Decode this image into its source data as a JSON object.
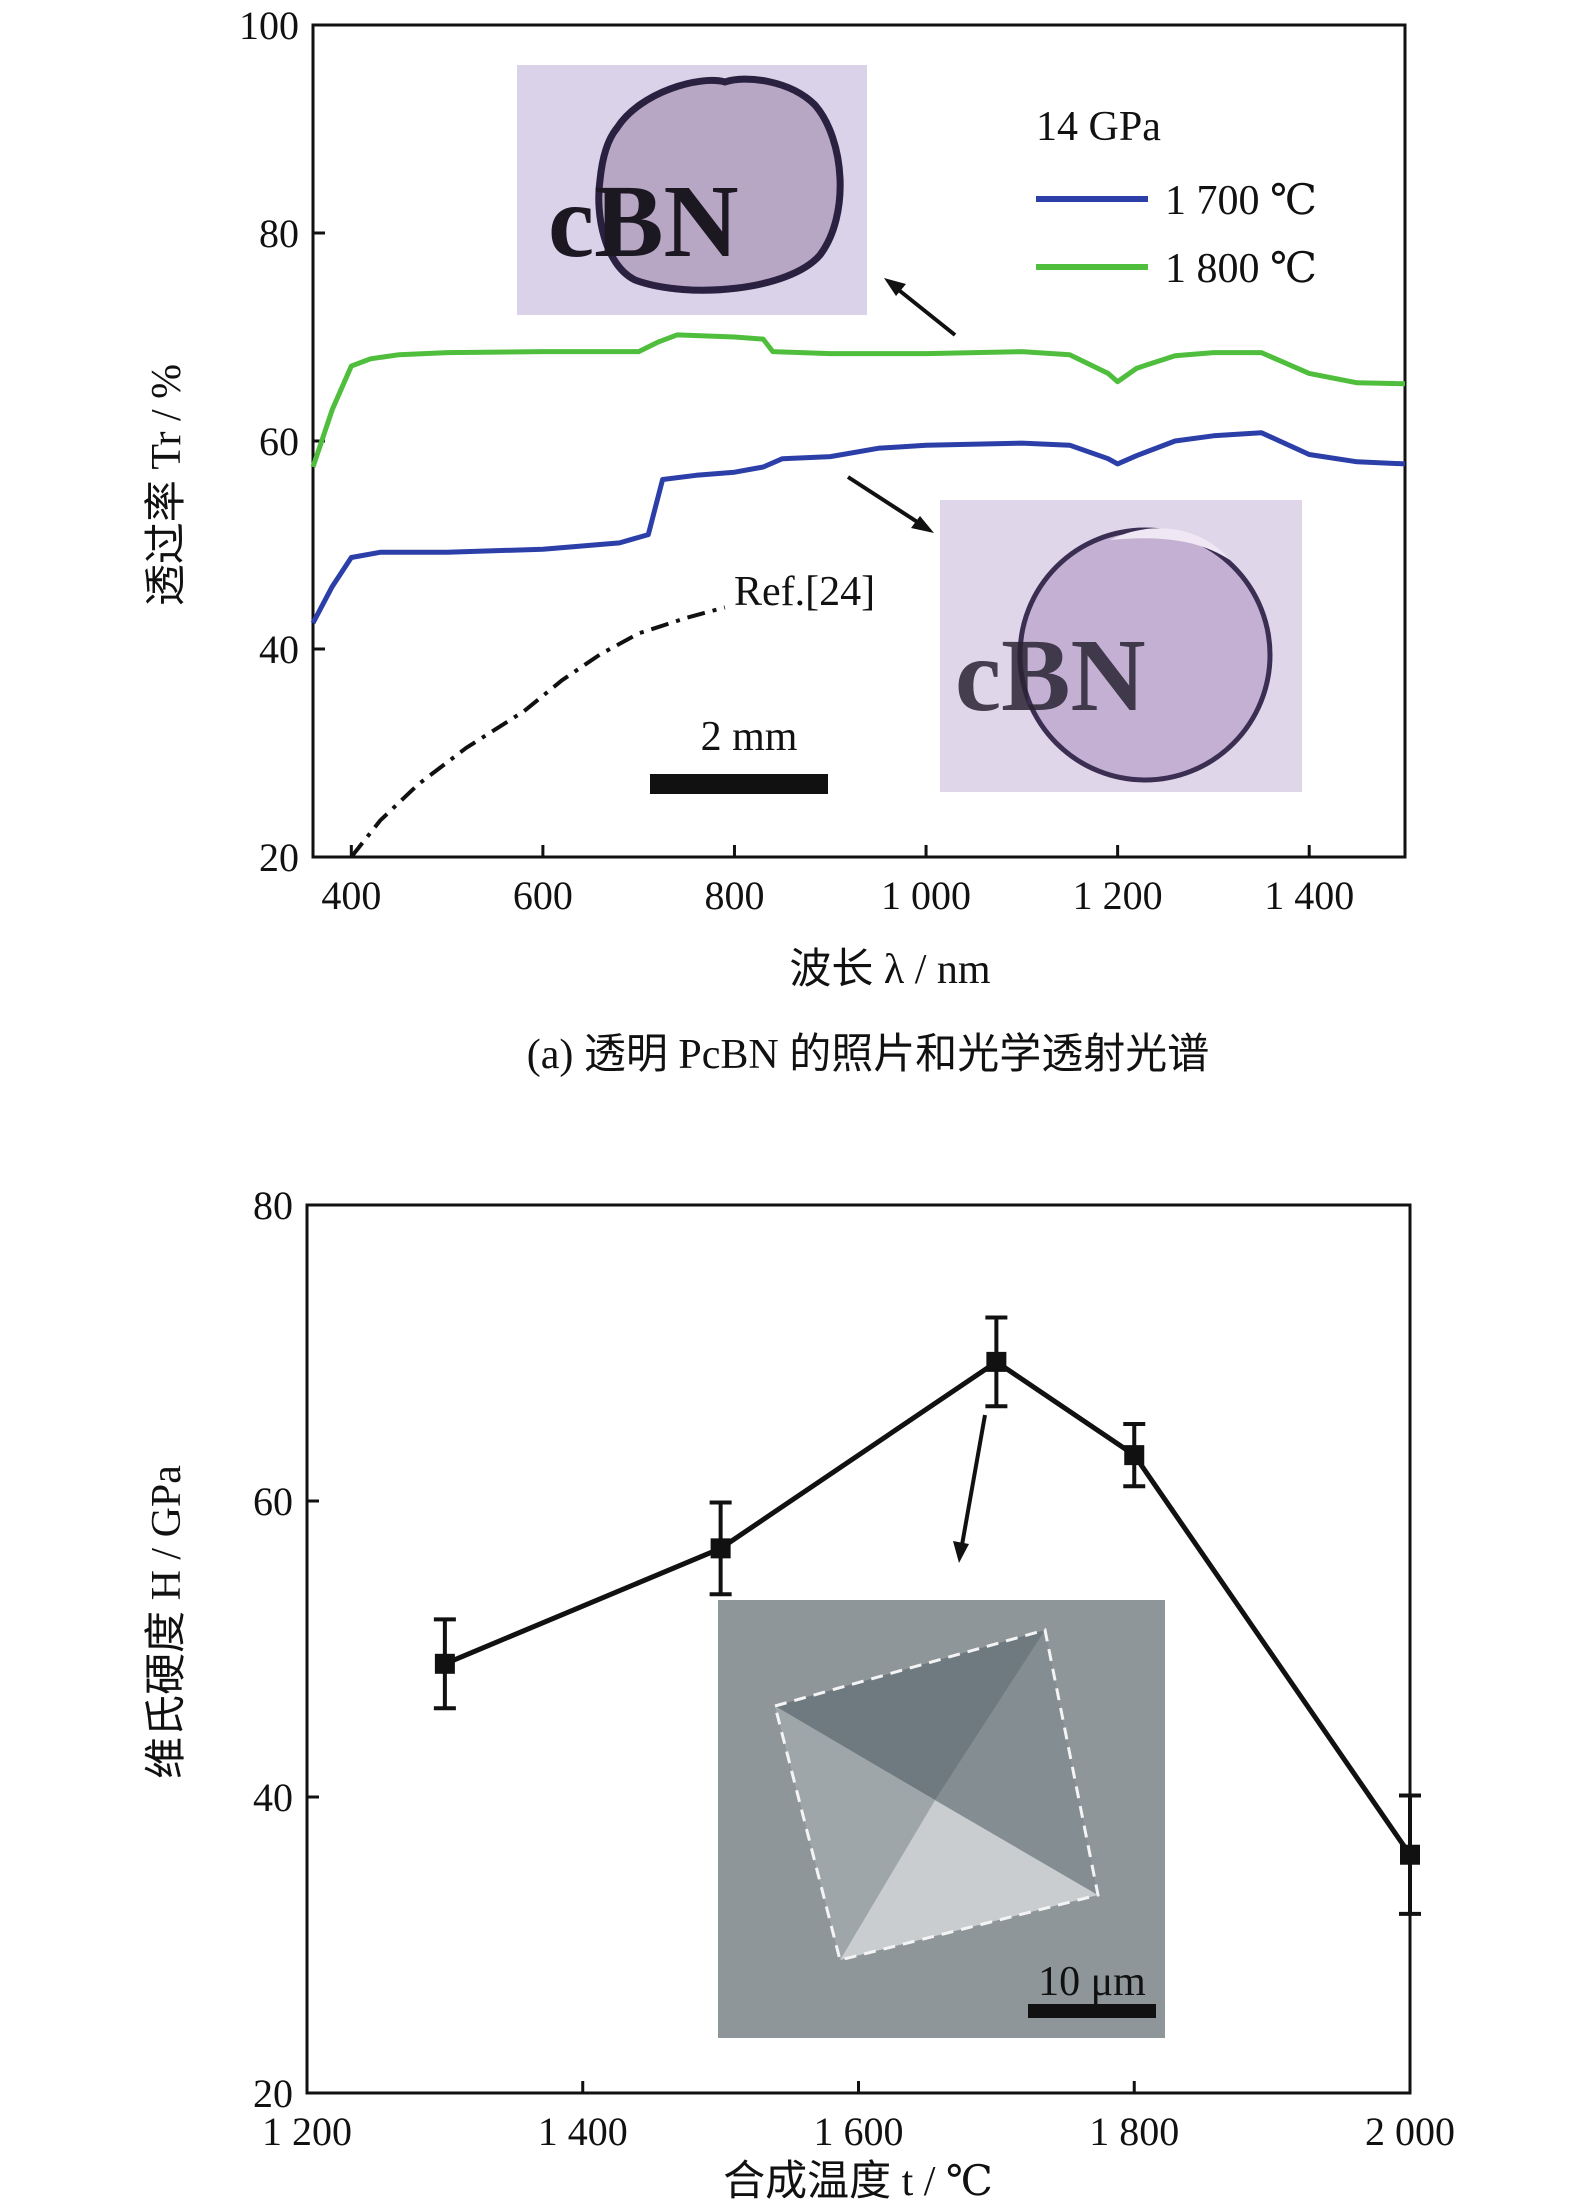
{
  "chart_data": [
    {
      "type": "line",
      "caption": "(a) 透明 PcBN 的照片和光学透射光谱",
      "xlabel": "波长 λ / nm",
      "ylabel": "透过率 Tr / %",
      "xlim": [
        360,
        1500
      ],
      "ylim": [
        20,
        100
      ],
      "xticks": [
        400,
        600,
        800,
        1000,
        1200,
        1400
      ],
      "xtick_labels": [
        "400",
        "600",
        "800",
        "1 000",
        "1 200",
        "1 400"
      ],
      "yticks": [
        20,
        40,
        60,
        80,
        100
      ],
      "ytick_labels": [
        "20",
        "40",
        "60",
        "80",
        "100"
      ],
      "legend_title": "14 GPa",
      "legend_position": "top-right",
      "series": [
        {
          "name": "1 700 ℃",
          "color": "#2c3fa8",
          "x": [
            360,
            380,
            400,
            430,
            500,
            600,
            680,
            710,
            725,
            760,
            800,
            830,
            850,
            900,
            950,
            1000,
            1100,
            1150,
            1190,
            1200,
            1220,
            1260,
            1300,
            1350,
            1400,
            1450,
            1500
          ],
          "y": [
            42.5,
            46,
            48.8,
            49.3,
            49.3,
            49.6,
            50.2,
            51,
            56.3,
            56.7,
            57,
            57.5,
            58.3,
            58.5,
            59.3,
            59.6,
            59.8,
            59.6,
            58.3,
            57.8,
            58.6,
            60,
            60.5,
            60.8,
            58.7,
            58,
            57.8
          ]
        },
        {
          "name": "1 800 ℃",
          "color": "#4fbe3c",
          "x": [
            360,
            380,
            400,
            420,
            450,
            500,
            600,
            700,
            720,
            740,
            800,
            830,
            840,
            900,
            1000,
            1100,
            1150,
            1190,
            1200,
            1220,
            1260,
            1300,
            1350,
            1400,
            1450,
            1500
          ],
          "y": [
            57.5,
            63,
            67.2,
            67.9,
            68.3,
            68.5,
            68.6,
            68.6,
            69.5,
            70.2,
            70,
            69.8,
            68.6,
            68.4,
            68.4,
            68.6,
            68.3,
            66.5,
            65.7,
            67,
            68.2,
            68.5,
            68.5,
            66.5,
            65.6,
            65.5
          ]
        },
        {
          "name": "Ref.[24]",
          "color": "#111111",
          "style": "dash-dot",
          "x": [
            400,
            430,
            470,
            520,
            580,
            620,
            660,
            700,
            750,
            790
          ],
          "y": [
            20,
            23.5,
            27,
            30.5,
            34,
            37,
            39.5,
            41.5,
            43,
            44
          ]
        }
      ],
      "annotations": [
        "Ref.[24]",
        "2 mm",
        "cBN",
        "cBN"
      ]
    },
    {
      "type": "line",
      "xlabel": "合成温度 t / ℃",
      "ylabel": "维氏硬度 H / GPa",
      "xlim": [
        1200,
        2000
      ],
      "ylim": [
        20,
        80
      ],
      "xticks": [
        1200,
        1400,
        1600,
        1800,
        2000
      ],
      "xtick_labels": [
        "1 200",
        "1 400",
        "1 600",
        "1 800",
        "2 000"
      ],
      "yticks": [
        20,
        40,
        60,
        80
      ],
      "ytick_labels": [
        "20",
        "40",
        "60",
        "80"
      ],
      "series": [
        {
          "color": "#111111",
          "x": [
            1300,
            1500,
            1700,
            1800,
            2000
          ],
          "y": [
            49,
            56.8,
            69.4,
            63.1,
            36.1
          ],
          "error": [
            3,
            3.1,
            3,
            2.1,
            4
          ]
        }
      ],
      "annotations": [
        "10 μm"
      ]
    }
  ]
}
